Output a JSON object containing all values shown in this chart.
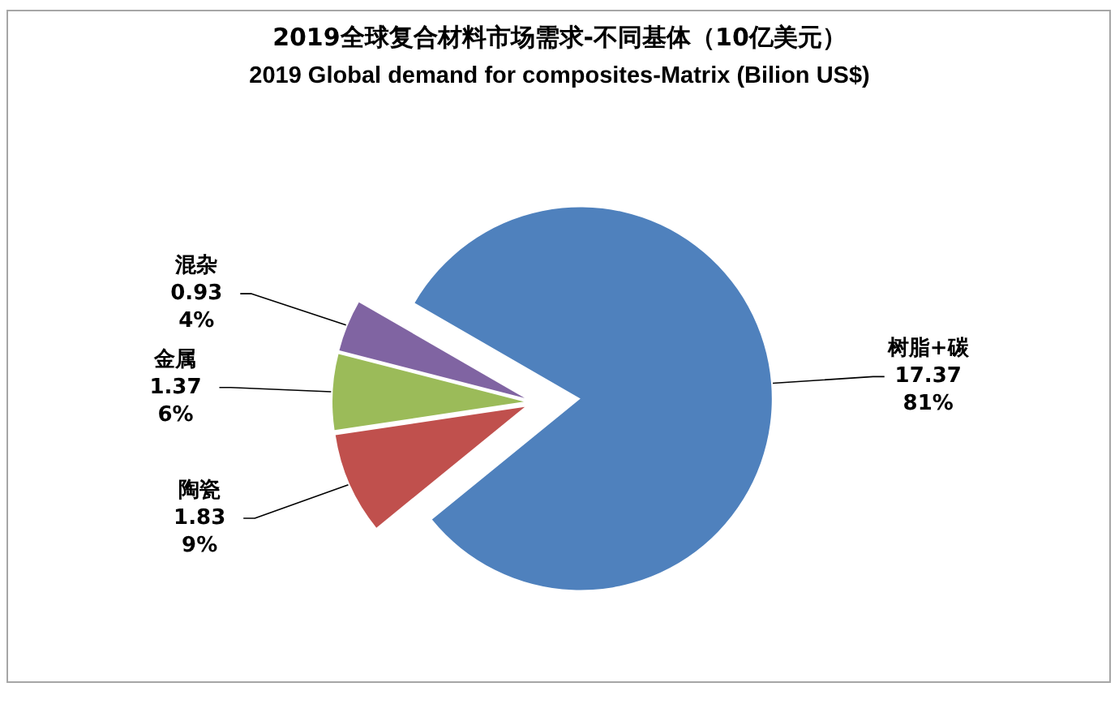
{
  "chart_data": {
    "type": "pie",
    "title": "2019全球复合材料市场需求-不同基体（10亿美元）",
    "subtitle": "2019 Global demand for composites-Matrix (Bilion US$)",
    "categories": [
      "树脂+碳",
      "陶瓷",
      "金属",
      "混杂"
    ],
    "values": [
      17.37,
      1.83,
      1.37,
      0.93
    ],
    "colors": [
      "#4f81bd",
      "#c0504d",
      "#9bbb59",
      "#8064a2"
    ],
    "value_labels": [
      "17.37\n81%",
      "1.83\n9%",
      "1.37\n6%",
      "0.93\n4%"
    ]
  }
}
